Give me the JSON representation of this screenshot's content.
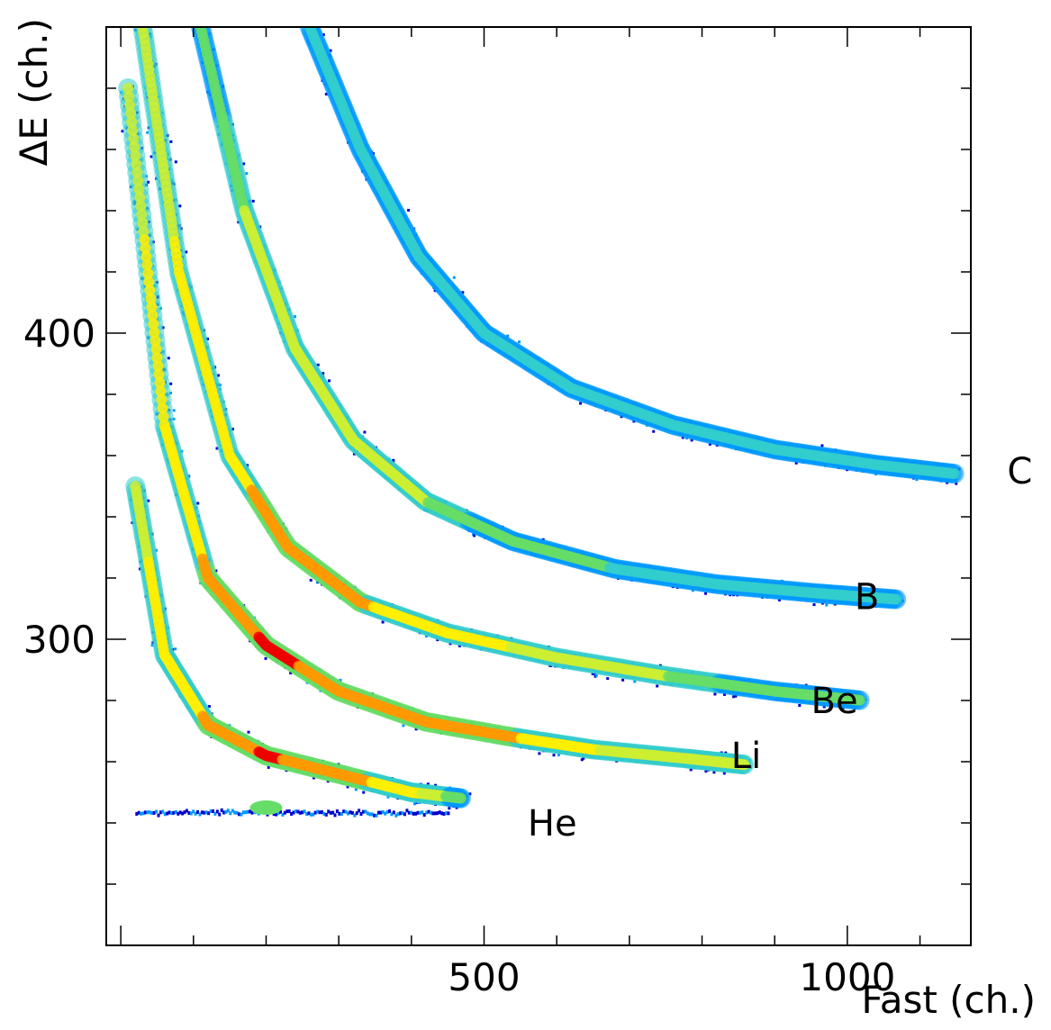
{
  "chart_data": {
    "type": "heatmap",
    "xlabel": "Fast (ch.)",
    "ylabel": "ΔE (ch.)",
    "xlim": [
      -20,
      1170
    ],
    "ylim": [
      200,
      500
    ],
    "x_ticks": [
      500,
      1000
    ],
    "y_ticks": [
      300,
      400
    ],
    "grid": false,
    "colorscale": [
      "#0000cc",
      "#0099ff",
      "#33cccc",
      "#66dd66",
      "#ccee33",
      "#ffee00",
      "#ff9900",
      "#ee0000"
    ],
    "series": [
      {
        "name": "He",
        "label_at": [
          560,
          240
        ],
        "x": [
          20,
          60,
          120,
          200,
          300,
          400,
          470
        ],
        "y": [
          350,
          295,
          272,
          262,
          256,
          250,
          248
        ],
        "intensity": [
          0.6,
          0.7,
          0.8,
          0.95,
          0.85,
          0.7,
          0.4
        ]
      },
      {
        "name": "Li",
        "label_at": [
          840,
          262
        ],
        "x": [
          10,
          60,
          120,
          200,
          300,
          420,
          540,
          650,
          780,
          860
        ],
        "y": [
          480,
          370,
          320,
          298,
          283,
          273,
          268,
          264,
          261,
          259
        ],
        "intensity": [
          0.6,
          0.7,
          0.8,
          0.95,
          0.9,
          0.85,
          0.8,
          0.65,
          0.55,
          0.5
        ]
      },
      {
        "name": "Be",
        "label_at": [
          950,
          280
        ],
        "x": [
          30,
          80,
          150,
          230,
          330,
          450,
          600,
          750,
          900,
          1020
        ],
        "y": [
          500,
          420,
          360,
          330,
          312,
          302,
          294,
          288,
          283,
          280
        ],
        "intensity": [
          0.6,
          0.65,
          0.75,
          0.85,
          0.8,
          0.7,
          0.6,
          0.5,
          0.45,
          0.45
        ]
      },
      {
        "name": "B",
        "label_at": [
          1010,
          314
        ],
        "x": [
          110,
          170,
          240,
          320,
          420,
          540,
          680,
          820,
          960,
          1070
        ],
        "y": [
          500,
          440,
          395,
          365,
          345,
          332,
          323,
          318,
          315,
          313
        ],
        "intensity": [
          0.45,
          0.5,
          0.5,
          0.55,
          0.5,
          0.45,
          0.35,
          0.3,
          0.3,
          0.35
        ]
      },
      {
        "name": "C",
        "label_at": [
          1220,
          355
        ],
        "x": [
          260,
          330,
          410,
          500,
          620,
          760,
          900,
          1040,
          1150
        ],
        "y": [
          500,
          460,
          425,
          400,
          382,
          370,
          362,
          357,
          354
        ],
        "intensity": [
          0.3,
          0.32,
          0.3,
          0.28,
          0.25,
          0.22,
          0.22,
          0.25,
          0.3
        ]
      }
    ],
    "baseline": {
      "x": [
        20,
        450
      ],
      "y": 243
    }
  }
}
